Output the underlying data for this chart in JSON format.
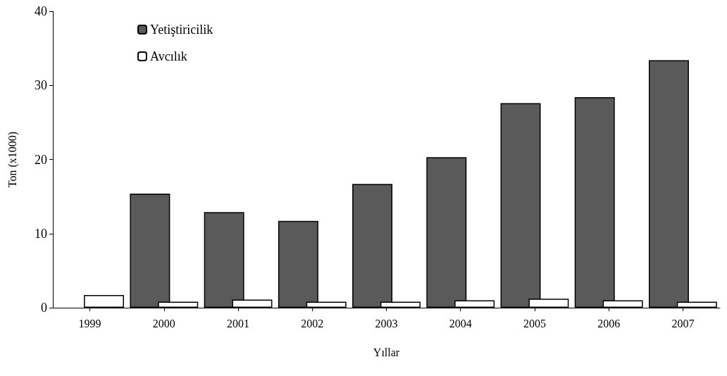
{
  "chart_data": {
    "type": "bar",
    "xlabel": "Yıllar",
    "ylabel": "Ton (x1000)",
    "categories": [
      "1999",
      "2000",
      "2001",
      "2002",
      "2003",
      "2004",
      "2005",
      "2006",
      "2007"
    ],
    "series": [
      {
        "name": "Yetiştiricilik",
        "color": "#5a5a5a",
        "values": [
          null,
          15.4,
          12.9,
          11.7,
          16.7,
          20.3,
          27.6,
          28.4,
          33.4
        ]
      },
      {
        "name": "Avcılık",
        "color": "#ffffff",
        "values": [
          1.7,
          0.8,
          1.1,
          0.8,
          0.8,
          1.0,
          1.2,
          1.0,
          0.8
        ]
      }
    ],
    "ylim": [
      0,
      40
    ],
    "yticks": [
      0,
      10,
      20,
      30,
      40
    ],
    "grid": false,
    "legend": "top left"
  }
}
